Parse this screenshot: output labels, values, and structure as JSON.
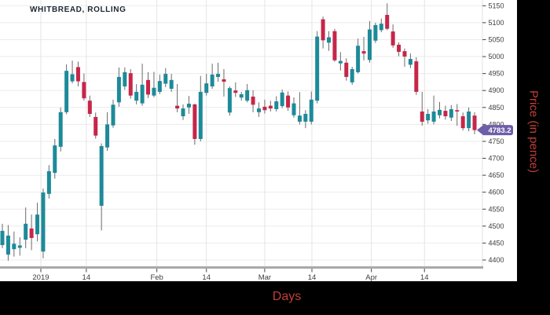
{
  "chart": {
    "title": "WHITBREAD, ROLLING",
    "x_axis_title": "Days",
    "y_axis_title": "Price (in pence)",
    "last_price_label": "4783.2"
  },
  "chart_data": {
    "type": "candlestick",
    "title": "WHITBREAD, ROLLING",
    "xlabel": "Days",
    "ylabel": "Price (in pence)",
    "ylim": [
      4400,
      5150
    ],
    "grid": true,
    "y_ticks": [
      4400,
      4450,
      4500,
      4550,
      4600,
      4650,
      4700,
      4750,
      4800,
      4850,
      4900,
      4950,
      5000,
      5050,
      5100,
      5150
    ],
    "x_ticks": [
      {
        "label": "2019",
        "pos": 6.6
      },
      {
        "label": "14",
        "pos": 14.4
      },
      {
        "label": "Feb",
        "pos": 26.5
      },
      {
        "label": "14",
        "pos": 35.0
      },
      {
        "label": "Mar",
        "pos": 45.0
      },
      {
        "label": "14",
        "pos": 53.1
      },
      {
        "label": "Apr",
        "pos": 63.3
      },
      {
        "label": "14",
        "pos": 72.4
      }
    ],
    "last_price": 4783.2,
    "colors": {
      "bullish": "#1d8a99",
      "bearish": "#c62649",
      "wick": "#6b6b6b",
      "grid": "#ebebeb",
      "axis_line": "#a9a9a9",
      "tick_text": "#3d3d3d",
      "price_marker": "#6e5da9",
      "axis_title_text": "#c23f38"
    },
    "candles_format": [
      "open",
      "high",
      "low",
      "close"
    ],
    "candles": [
      [
        4444,
        4507,
        4435,
        4486
      ],
      [
        4416,
        4503,
        4398,
        4472
      ],
      [
        4432,
        4484,
        4410,
        4448
      ],
      [
        4436,
        4467,
        4413,
        4443
      ],
      [
        4460,
        4555,
        4435,
        4507
      ],
      [
        4493,
        4534,
        4429,
        4465
      ],
      [
        4476,
        4569,
        4455,
        4534
      ],
      [
        4425,
        4611,
        4405,
        4599
      ],
      [
        4595,
        4680,
        4581,
        4662
      ],
      [
        4657,
        4757,
        4640,
        4738
      ],
      [
        4734,
        4850,
        4720,
        4836
      ],
      [
        4836,
        4977,
        4830,
        4958
      ],
      [
        4927,
        4988,
        4921,
        4948
      ],
      [
        4969,
        4985,
        4912,
        4927
      ],
      [
        4925,
        4950,
        4870,
        4877
      ],
      [
        4870,
        4885,
        4822,
        4831
      ],
      [
        4822,
        4835,
        4758,
        4767
      ],
      [
        4560,
        4744,
        4487,
        4736
      ],
      [
        4732,
        4836,
        4722,
        4800
      ],
      [
        4797,
        4873,
        4790,
        4858
      ],
      [
        4865,
        4968,
        4852,
        4940
      ],
      [
        4912,
        4968,
        4902,
        4954
      ],
      [
        4951,
        4963,
        4876,
        4885
      ],
      [
        4870,
        4919,
        4859,
        4896
      ],
      [
        4862,
        4979,
        4855,
        4917
      ],
      [
        4931,
        4954,
        4878,
        4888
      ],
      [
        4885,
        4955,
        4880,
        4908
      ],
      [
        4896,
        4947,
        4889,
        4928
      ],
      [
        4920,
        4966,
        4910,
        4949
      ],
      [
        4905,
        4949,
        4896,
        4931
      ],
      [
        4855,
        4919,
        4836,
        4847
      ],
      [
        4824,
        4859,
        4813,
        4847
      ],
      [
        4850,
        4884,
        4831,
        4861
      ],
      [
        4859,
        4861,
        4740,
        4757
      ],
      [
        4757,
        4943,
        4750,
        4896
      ],
      [
        4893,
        4949,
        4885,
        4921
      ],
      [
        4912,
        4979,
        4905,
        4947
      ],
      [
        4940,
        4982,
        4926,
        4949
      ],
      [
        4933,
        4963,
        4882,
        4926
      ],
      [
        4835,
        4912,
        4826,
        4907
      ],
      [
        4900,
        4924,
        4881,
        4893
      ],
      [
        4879,
        4896,
        4870,
        4889
      ],
      [
        4870,
        4919,
        4865,
        4901
      ],
      [
        4882,
        4901,
        4836,
        4858
      ],
      [
        4836,
        4865,
        4822,
        4847
      ],
      [
        4852,
        4873,
        4832,
        4842
      ],
      [
        4855,
        4870,
        4838,
        4847
      ],
      [
        4845,
        4883,
        4838,
        4868
      ],
      [
        4854,
        4903,
        4848,
        4894
      ],
      [
        4885,
        4897,
        4840,
        4850
      ],
      [
        4827,
        4880,
        4820,
        4862
      ],
      [
        4808,
        4895,
        4800,
        4826
      ],
      [
        4808,
        4842,
        4789,
        4831
      ],
      [
        4808,
        4897,
        4800,
        4873
      ],
      [
        4870,
        5075,
        4862,
        5059
      ],
      [
        5110,
        5118,
        5024,
        5048
      ],
      [
        5041,
        5075,
        5017,
        5057
      ],
      [
        5075,
        5082,
        4985,
        4989
      ],
      [
        4980,
        5013,
        4959,
        4987
      ],
      [
        4982,
        4995,
        4929,
        4940
      ],
      [
        4924,
        4970,
        4917,
        4963
      ],
      [
        4954,
        5053,
        4950,
        5032
      ],
      [
        5016,
        5058,
        4989,
        5009
      ],
      [
        4990,
        5105,
        4982,
        5080
      ],
      [
        5047,
        5100,
        5040,
        5093
      ],
      [
        5078,
        5112,
        5072,
        5097
      ],
      [
        5123,
        5157,
        5078,
        5082
      ],
      [
        5074,
        5095,
        5026,
        5033
      ],
      [
        5035,
        5042,
        5001,
        5014
      ],
      [
        5016,
        5024,
        4970,
        5000
      ],
      [
        4976,
        5009,
        4966,
        4993
      ],
      [
        4986,
        4998,
        4887,
        4896
      ],
      [
        4838,
        4896,
        4796,
        4808
      ],
      [
        4812,
        4845,
        4802,
        4831
      ],
      [
        4808,
        4885,
        4800,
        4838
      ],
      [
        4827,
        4866,
        4818,
        4843
      ],
      [
        4840,
        4855,
        4814,
        4824
      ],
      [
        4820,
        4857,
        4810,
        4845
      ],
      [
        4842,
        4860,
        4796,
        4838
      ],
      [
        4824,
        4835,
        4782,
        4789
      ],
      [
        4789,
        4850,
        4780,
        4838
      ],
      [
        4826,
        4836,
        4771,
        4783.2
      ]
    ]
  }
}
